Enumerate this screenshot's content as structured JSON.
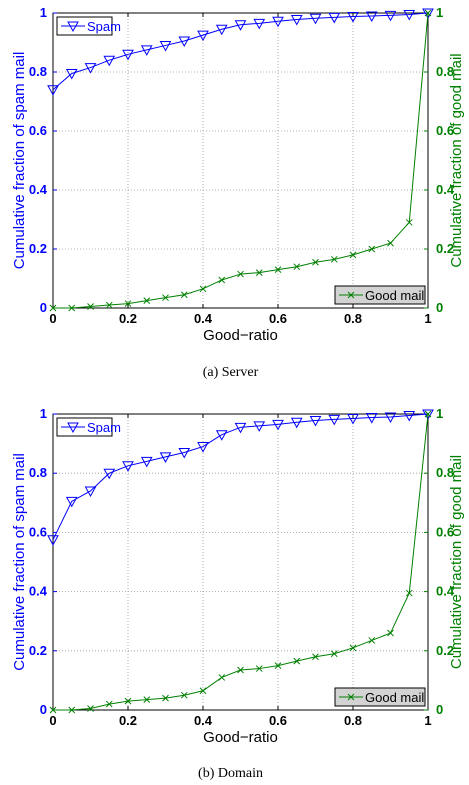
{
  "colors": {
    "spam": "#0000ff",
    "good": "#008000",
    "axis": "#000000",
    "grid": "#999999",
    "legend_good_bg": "#d3d3d3"
  },
  "captions": [
    "(a) Server",
    "(b) Domain"
  ],
  "chart_data": [
    {
      "type": "line",
      "xlabel": "Good−ratio",
      "ylabel_left": "Cumulative fraction of spam mail",
      "ylabel_right": "Cumulative fraction of good mail",
      "xlim": [
        0,
        1
      ],
      "ylim": [
        0,
        1
      ],
      "x_ticks": [
        "0",
        "0.2",
        "0.4",
        "0.6",
        "0.8",
        "1"
      ],
      "y_ticks": [
        "0",
        "0.2",
        "0.4",
        "0.6",
        "0.8",
        "1"
      ],
      "grid": true,
      "x": [
        0,
        0.05,
        0.1,
        0.15,
        0.2,
        0.25,
        0.3,
        0.35,
        0.4,
        0.45,
        0.5,
        0.55,
        0.6,
        0.65,
        0.7,
        0.75,
        0.8,
        0.85,
        0.9,
        0.95,
        1.0
      ],
      "series": [
        {
          "name": "Spam",
          "marker": "triangle-down",
          "legend": "top-left",
          "values": [
            0.74,
            0.795,
            0.815,
            0.84,
            0.86,
            0.875,
            0.89,
            0.905,
            0.925,
            0.945,
            0.96,
            0.965,
            0.972,
            0.978,
            0.982,
            0.985,
            0.988,
            0.99,
            0.992,
            0.995,
            1.0
          ]
        },
        {
          "name": "Good mail",
          "marker": "x",
          "legend": "bottom-right",
          "values": [
            0.0,
            0.0,
            0.005,
            0.01,
            0.015,
            0.025,
            0.035,
            0.045,
            0.065,
            0.095,
            0.115,
            0.12,
            0.13,
            0.14,
            0.155,
            0.165,
            0.18,
            0.2,
            0.22,
            0.29,
            1.0
          ]
        }
      ]
    },
    {
      "type": "line",
      "xlabel": "Good−ratio",
      "ylabel_left": "Cumulative fraction of spam mail",
      "ylabel_right": "Cumulative fraction of good mail",
      "xlim": [
        0,
        1
      ],
      "ylim": [
        0,
        1
      ],
      "x_ticks": [
        "0",
        "0.2",
        "0.4",
        "0.6",
        "0.8",
        "1"
      ],
      "y_ticks": [
        "0",
        "0.2",
        "0.4",
        "0.6",
        "0.8",
        "1"
      ],
      "grid": true,
      "x": [
        0,
        0.05,
        0.1,
        0.15,
        0.2,
        0.25,
        0.3,
        0.35,
        0.4,
        0.45,
        0.5,
        0.55,
        0.6,
        0.65,
        0.7,
        0.75,
        0.8,
        0.85,
        0.9,
        0.95,
        1.0
      ],
      "series": [
        {
          "name": "Spam",
          "marker": "triangle-down",
          "legend": "top-left",
          "values": [
            0.575,
            0.705,
            0.74,
            0.8,
            0.825,
            0.84,
            0.855,
            0.87,
            0.89,
            0.93,
            0.955,
            0.96,
            0.965,
            0.972,
            0.978,
            0.982,
            0.985,
            0.988,
            0.99,
            0.995,
            1.0
          ]
        },
        {
          "name": "Good mail",
          "marker": "x",
          "legend": "bottom-right",
          "values": [
            0.0,
            0.0,
            0.005,
            0.02,
            0.03,
            0.035,
            0.04,
            0.05,
            0.065,
            0.11,
            0.135,
            0.14,
            0.15,
            0.165,
            0.18,
            0.19,
            0.21,
            0.235,
            0.26,
            0.395,
            1.0
          ]
        }
      ]
    }
  ]
}
